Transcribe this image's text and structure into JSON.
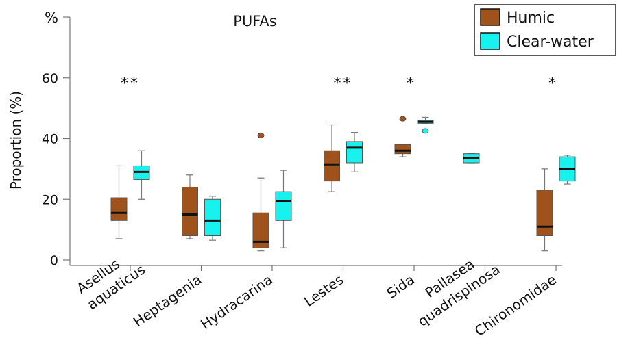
{
  "chart_data": {
    "type": "box",
    "title": "PUFAs",
    "ylabel": "Proportion (%)",
    "yunit_label": "%",
    "ylim": [
      0,
      80
    ],
    "yticks": [
      0,
      20,
      40,
      60
    ],
    "legend_position": "top-right",
    "categories": [
      {
        "lines": [
          "Asellus",
          "aquaticus"
        ],
        "significance": "**"
      },
      {
        "lines": [
          "Heptagenia"
        ],
        "significance": ""
      },
      {
        "lines": [
          "Hydracarina"
        ],
        "significance": ""
      },
      {
        "lines": [
          "Lestes"
        ],
        "significance": "**"
      },
      {
        "lines": [
          "Sida"
        ],
        "significance": "*"
      },
      {
        "lines": [
          "Pallasea",
          "quadrispinosa"
        ],
        "significance": ""
      },
      {
        "lines": [
          "Chironomidae"
        ],
        "significance": "*"
      }
    ],
    "series": [
      {
        "name": "Humic",
        "color": "#a0521c",
        "boxes": [
          {
            "min": 7,
            "q1": 13,
            "median": 15.5,
            "q3": 20.5,
            "max": 31,
            "outliers": []
          },
          {
            "min": 7,
            "q1": 8,
            "median": 15,
            "q3": 24,
            "max": 28,
            "outliers": []
          },
          {
            "min": 3,
            "q1": 4,
            "median": 6,
            "q3": 15.5,
            "max": 27,
            "outliers": [
              41
            ]
          },
          {
            "min": 22.5,
            "q1": 26,
            "median": 31.5,
            "q3": 36,
            "max": 44.5,
            "outliers": []
          },
          {
            "min": 34,
            "q1": 35,
            "median": 36,
            "q3": 38,
            "max": 38,
            "outliers": [
              46.5
            ]
          },
          null,
          {
            "min": 3,
            "q1": 8,
            "median": 11,
            "q3": 23,
            "max": 30,
            "outliers": []
          }
        ]
      },
      {
        "name": "Clear-water",
        "color": "#17f2ee",
        "boxes": [
          {
            "min": 20,
            "q1": 26.5,
            "median": 29,
            "q3": 31,
            "max": 36,
            "outliers": []
          },
          {
            "min": 6.5,
            "q1": 8,
            "median": 13,
            "q3": 20,
            "max": 21,
            "outliers": []
          },
          {
            "min": 4,
            "q1": 13,
            "median": 19.5,
            "q3": 22.5,
            "max": 29.5,
            "outliers": []
          },
          {
            "min": 29,
            "q1": 32,
            "median": 37,
            "q3": 39,
            "max": 42,
            "outliers": []
          },
          {
            "min": 45,
            "q1": 45,
            "median": 45.5,
            "q3": 46,
            "max": 47,
            "outliers": [
              42.5
            ]
          },
          {
            "min": 32,
            "q1": 32,
            "median": 33.5,
            "q3": 35,
            "max": 35,
            "outliers": []
          },
          {
            "min": 25,
            "q1": 26,
            "median": 30,
            "q3": 34,
            "max": 34.5,
            "outliers": []
          }
        ]
      }
    ]
  }
}
